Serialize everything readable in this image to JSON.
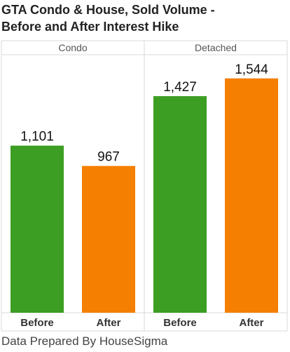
{
  "title_line1": "GTA Condo & House, Sold Volume -",
  "title_line2": "Before and After Interest Hike",
  "footer": "Data Prepared By HouseSigma",
  "chart_data": {
    "type": "bar",
    "panels": [
      "Condo",
      "Detached"
    ],
    "categories": [
      "Before",
      "After"
    ],
    "values": [
      [
        1101,
        967
      ],
      [
        1427,
        1544
      ]
    ],
    "value_labels": [
      [
        "1,101",
        "967"
      ],
      [
        "1,427",
        "1,544"
      ]
    ],
    "colors": [
      "#3c9e22",
      "#f57f00"
    ],
    "ylim": [
      0,
      1700
    ],
    "grid": false,
    "legend": "none"
  }
}
